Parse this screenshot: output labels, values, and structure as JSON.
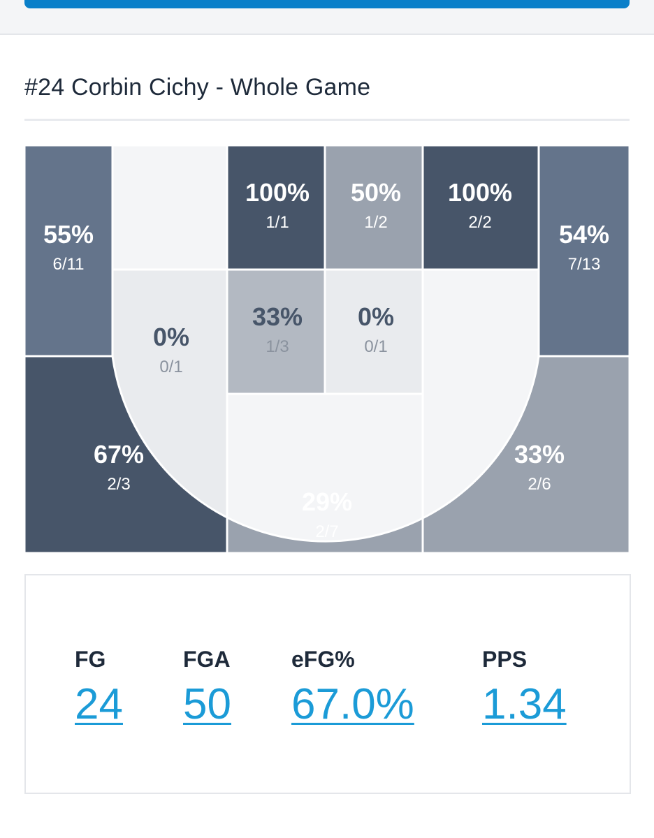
{
  "header": {
    "title": "#24 Corbin Cichy - Whole Game"
  },
  "colors": {
    "dark": "#475569",
    "mid_dark": "#64748b",
    "mid": "#9aa2ae",
    "light": "#b3b9c2",
    "lighter": "#e9ebee",
    "empty": "#f4f5f7",
    "text_dark_bg": "#ffffff",
    "text_light_bg_pct": "#475569",
    "text_light_bg_frac": "#8a929e",
    "link": "#1b9bd7"
  },
  "zones": [
    {
      "id": "left-corner-three",
      "pct": "55%",
      "frac": "6/11",
      "made": 6,
      "attempts": 11,
      "shade": "mid_dark"
    },
    {
      "id": "left-wing-three",
      "pct": "67%",
      "frac": "2/3",
      "made": 2,
      "attempts": 3,
      "shade": "dark"
    },
    {
      "id": "top-key-three",
      "pct": "29%",
      "frac": "2/7",
      "made": 2,
      "attempts": 7,
      "shade": "mid"
    },
    {
      "id": "right-wing-three",
      "pct": "33%",
      "frac": "2/6",
      "made": 2,
      "attempts": 6,
      "shade": "mid"
    },
    {
      "id": "right-corner-three",
      "pct": "54%",
      "frac": "7/13",
      "made": 7,
      "attempts": 13,
      "shade": "mid_dark"
    },
    {
      "id": "left-baseline-mid",
      "pct": "",
      "frac": "",
      "made": 0,
      "attempts": 0,
      "shade": "empty"
    },
    {
      "id": "left-elbow-mid",
      "pct": "0%",
      "frac": "0/1",
      "made": 0,
      "attempts": 1,
      "shade": "lighter"
    },
    {
      "id": "paint-left",
      "pct": "100%",
      "frac": "1/1",
      "made": 1,
      "attempts": 1,
      "shade": "dark"
    },
    {
      "id": "paint-right",
      "pct": "50%",
      "frac": "1/2",
      "made": 1,
      "attempts": 2,
      "shade": "mid"
    },
    {
      "id": "paint-left-high",
      "pct": "33%",
      "frac": "1/3",
      "made": 1,
      "attempts": 3,
      "shade": "light"
    },
    {
      "id": "paint-right-high",
      "pct": "0%",
      "frac": "0/1",
      "made": 0,
      "attempts": 1,
      "shade": "lighter"
    },
    {
      "id": "right-baseline-mid",
      "pct": "100%",
      "frac": "2/2",
      "made": 2,
      "attempts": 2,
      "shade": "dark"
    },
    {
      "id": "right-elbow-mid",
      "pct": "",
      "frac": "",
      "made": 0,
      "attempts": 0,
      "shade": "empty"
    },
    {
      "id": "top-key-mid",
      "pct": "",
      "frac": "",
      "made": 0,
      "attempts": 0,
      "shade": "empty"
    }
  ],
  "stats": [
    {
      "label": "FG",
      "value": "24"
    },
    {
      "label": "FGA",
      "value": "50"
    },
    {
      "label": "eFG%",
      "value": "67.0%"
    },
    {
      "label": "PPS",
      "value": "1.34"
    }
  ]
}
